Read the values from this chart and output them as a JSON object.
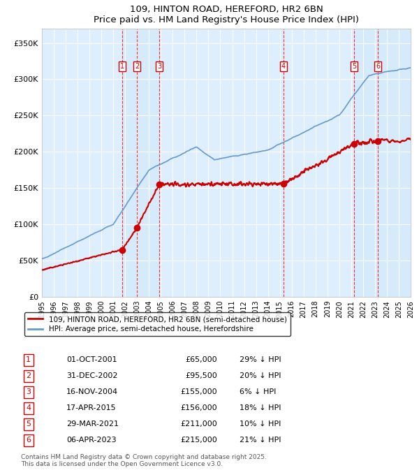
{
  "title": "109, HINTON ROAD, HEREFORD, HR2 6BN",
  "subtitle": "Price paid vs. HM Land Registry's House Price Index (HPI)",
  "transactions": [
    {
      "num": 1,
      "date": "01-OCT-2001",
      "year": 2001.75,
      "price": 65000,
      "pct": "29% ↓ HPI"
    },
    {
      "num": 2,
      "date": "31-DEC-2002",
      "year": 2002.99,
      "price": 95500,
      "pct": "20% ↓ HPI"
    },
    {
      "num": 3,
      "date": "16-NOV-2004",
      "year": 2004.87,
      "price": 155000,
      "pct": "6% ↓ HPI"
    },
    {
      "num": 4,
      "date": "17-APR-2015",
      "year": 2015.29,
      "price": 156000,
      "pct": "18% ↓ HPI"
    },
    {
      "num": 5,
      "date": "29-MAR-2021",
      "year": 2021.24,
      "price": 211000,
      "pct": "10% ↓ HPI"
    },
    {
      "num": 6,
      "date": "06-APR-2023",
      "year": 2023.26,
      "price": 215000,
      "pct": "21% ↓ HPI"
    }
  ],
  "property_color": "#cc0000",
  "hpi_color": "#6699cc",
  "background_color": "#ddeeff",
  "grid_color": "#ffffff",
  "ylim": [
    0,
    370000
  ],
  "xlim": [
    1995,
    2026
  ],
  "ylabel_ticks": [
    0,
    50000,
    100000,
    150000,
    200000,
    250000,
    300000,
    350000
  ],
  "ylabel_labels": [
    "£0",
    "£50K",
    "£100K",
    "£150K",
    "£200K",
    "£250K",
    "£300K",
    "£350K"
  ],
  "footer": "Contains HM Land Registry data © Crown copyright and database right 2025.\nThis data is licensed under the Open Government Licence v3.0.",
  "legend_property": "109, HINTON ROAD, HEREFORD, HR2 6BN (semi-detached house)",
  "legend_hpi": "HPI: Average price, semi-detached house, Herefordshire"
}
